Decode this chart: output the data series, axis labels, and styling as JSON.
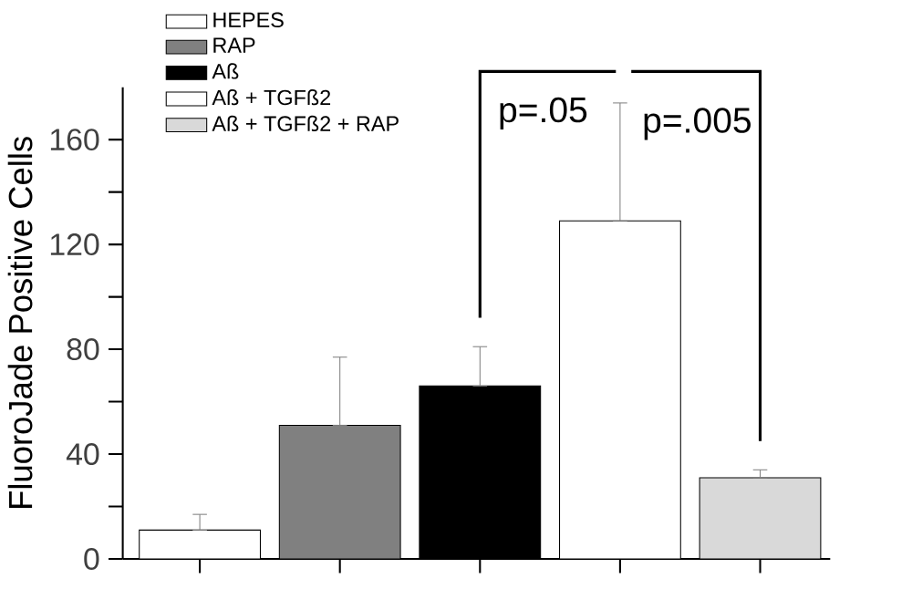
{
  "chart_data": {
    "type": "bar",
    "ylabel": "FluoroJade Positive Cells",
    "categories": [
      null,
      null,
      null,
      null,
      null
    ],
    "series": [
      {
        "name": "HEPES",
        "color": "#ffffff",
        "values": [
          11,
          null,
          null,
          null,
          null
        ],
        "errors": [
          [
            11,
            17
          ],
          null,
          null,
          null,
          null
        ]
      },
      {
        "name": "RAP",
        "color": "#808080",
        "values": [
          null,
          51,
          null,
          null,
          null
        ],
        "errors": [
          null,
          [
            51,
            77
          ],
          null,
          null,
          null
        ]
      },
      {
        "name": "Aß",
        "color": "#000000",
        "values": [
          null,
          null,
          66,
          null,
          null
        ],
        "errors": [
          null,
          null,
          [
            66,
            81
          ],
          null,
          null
        ]
      },
      {
        "name": "Aß + TGFß2",
        "color": "#ffffff",
        "values": [
          null,
          null,
          null,
          129,
          null
        ],
        "errors": [
          null,
          null,
          null,
          [
            129,
            174
          ],
          null
        ]
      },
      {
        "name": "Aß + TGFß2 + RAP",
        "color": "#d9d9d9",
        "values": [
          null,
          null,
          null,
          null,
          31
        ],
        "errors": [
          null,
          null,
          null,
          null,
          [
            31,
            34
          ]
        ]
      }
    ],
    "ylim": [
      0,
      180
    ],
    "yticks": [
      0,
      40,
      80,
      120,
      160
    ],
    "legend": "top left",
    "annotations": [
      "p=.05",
      "p=.005"
    ]
  }
}
